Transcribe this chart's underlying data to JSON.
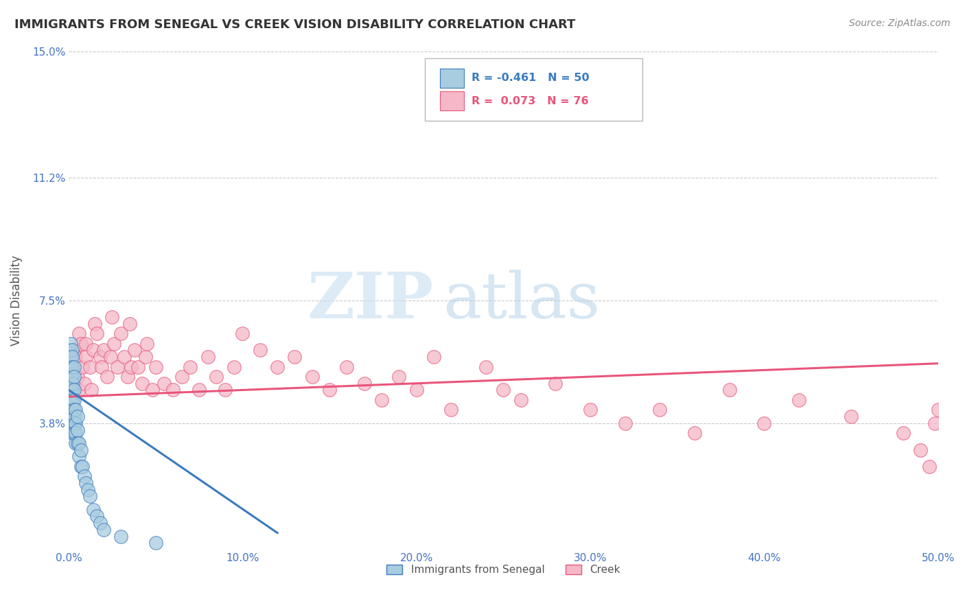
{
  "title": "IMMIGRANTS FROM SENEGAL VS CREEK VISION DISABILITY CORRELATION CHART",
  "source": "Source: ZipAtlas.com",
  "ylabel": "Vision Disability",
  "series1_label": "Immigrants from Senegal",
  "series2_label": "Creek",
  "series1_R": -0.461,
  "series1_N": 50,
  "series2_R": 0.073,
  "series2_N": 76,
  "series1_color": "#a8cce0",
  "series2_color": "#f4b8c8",
  "trend1_color": "#3a7abf",
  "trend2_color": "#e8557a",
  "xlim": [
    0.0,
    0.5
  ],
  "ylim": [
    0.0,
    0.15
  ],
  "ytick_values": [
    0.0,
    0.038,
    0.075,
    0.112,
    0.15
  ],
  "ytick_labels": [
    "",
    "3.8%",
    "7.5%",
    "11.2%",
    "15.0%"
  ],
  "xtick_vals": [
    0.0,
    0.1,
    0.2,
    0.3,
    0.4,
    0.5
  ],
  "xtick_labels": [
    "0.0%",
    "10.0%",
    "20.0%",
    "30.0%",
    "40.0%",
    "50.0%"
  ],
  "watermark_zip": "ZIP",
  "watermark_atlas": "atlas",
  "background_color": "#ffffff",
  "grid_color": "#bbbbbb",
  "title_color": "#333333",
  "axis_label_color": "#4472c4",
  "series1_x": [
    0.0005,
    0.001,
    0.001,
    0.001,
    0.001,
    0.001,
    0.0015,
    0.0015,
    0.0015,
    0.002,
    0.002,
    0.002,
    0.002,
    0.002,
    0.002,
    0.002,
    0.002,
    0.002,
    0.0025,
    0.0025,
    0.003,
    0.003,
    0.003,
    0.003,
    0.003,
    0.003,
    0.003,
    0.0035,
    0.004,
    0.004,
    0.004,
    0.004,
    0.005,
    0.005,
    0.005,
    0.006,
    0.006,
    0.007,
    0.007,
    0.008,
    0.009,
    0.01,
    0.011,
    0.012,
    0.014,
    0.016,
    0.018,
    0.02,
    0.03,
    0.05
  ],
  "series1_y": [
    0.06,
    0.062,
    0.058,
    0.055,
    0.05,
    0.045,
    0.052,
    0.048,
    0.044,
    0.06,
    0.058,
    0.055,
    0.052,
    0.048,
    0.045,
    0.042,
    0.038,
    0.035,
    0.05,
    0.044,
    0.055,
    0.052,
    0.048,
    0.045,
    0.042,
    0.038,
    0.035,
    0.04,
    0.042,
    0.038,
    0.035,
    0.032,
    0.04,
    0.036,
    0.032,
    0.032,
    0.028,
    0.03,
    0.025,
    0.025,
    0.022,
    0.02,
    0.018,
    0.016,
    0.012,
    0.01,
    0.008,
    0.006,
    0.004,
    0.002
  ],
  "series2_x": [
    0.001,
    0.002,
    0.003,
    0.004,
    0.005,
    0.006,
    0.006,
    0.007,
    0.008,
    0.009,
    0.01,
    0.01,
    0.012,
    0.013,
    0.014,
    0.015,
    0.016,
    0.018,
    0.019,
    0.02,
    0.022,
    0.024,
    0.025,
    0.026,
    0.028,
    0.03,
    0.032,
    0.034,
    0.035,
    0.036,
    0.038,
    0.04,
    0.042,
    0.044,
    0.045,
    0.048,
    0.05,
    0.055,
    0.06,
    0.065,
    0.07,
    0.075,
    0.08,
    0.085,
    0.09,
    0.095,
    0.1,
    0.11,
    0.12,
    0.13,
    0.14,
    0.15,
    0.16,
    0.17,
    0.18,
    0.19,
    0.2,
    0.21,
    0.22,
    0.24,
    0.25,
    0.26,
    0.28,
    0.3,
    0.32,
    0.34,
    0.36,
    0.38,
    0.4,
    0.42,
    0.45,
    0.48,
    0.49,
    0.495,
    0.498,
    0.5
  ],
  "series2_y": [
    0.05,
    0.055,
    0.06,
    0.058,
    0.052,
    0.048,
    0.065,
    0.062,
    0.055,
    0.05,
    0.058,
    0.062,
    0.055,
    0.048,
    0.06,
    0.068,
    0.065,
    0.058,
    0.055,
    0.06,
    0.052,
    0.058,
    0.07,
    0.062,
    0.055,
    0.065,
    0.058,
    0.052,
    0.068,
    0.055,
    0.06,
    0.055,
    0.05,
    0.058,
    0.062,
    0.048,
    0.055,
    0.05,
    0.048,
    0.052,
    0.055,
    0.048,
    0.058,
    0.052,
    0.048,
    0.055,
    0.065,
    0.06,
    0.055,
    0.058,
    0.052,
    0.048,
    0.055,
    0.05,
    0.045,
    0.052,
    0.048,
    0.058,
    0.042,
    0.055,
    0.048,
    0.045,
    0.05,
    0.042,
    0.038,
    0.042,
    0.035,
    0.048,
    0.038,
    0.045,
    0.04,
    0.035,
    0.03,
    0.025,
    0.038,
    0.042
  ],
  "trend1_x": [
    0.0,
    0.12
  ],
  "trend1_y": [
    0.048,
    0.005
  ],
  "trend2_x": [
    0.0,
    0.5
  ],
  "trend2_y": [
    0.046,
    0.056
  ]
}
